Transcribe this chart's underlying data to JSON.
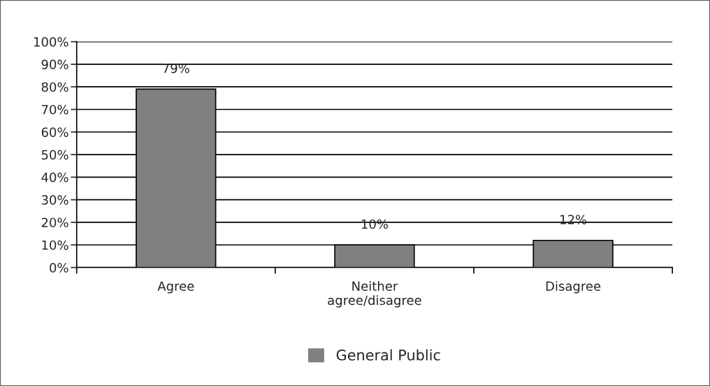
{
  "chart_data": {
    "type": "bar",
    "categories": [
      "Agree",
      "Neither\nagree/disagree",
      "Disagree"
    ],
    "series": [
      {
        "name": "General Public",
        "color": "#808080",
        "values": [
          79,
          10,
          12
        ],
        "value_labels": [
          "79%",
          "10%",
          "12%"
        ]
      }
    ],
    "ylim": [
      0,
      100
    ],
    "yticks": [
      {
        "value": 0,
        "label": "0%"
      },
      {
        "value": 10,
        "label": "10%"
      },
      {
        "value": 20,
        "label": "20%"
      },
      {
        "value": 30,
        "label": "30%"
      },
      {
        "value": 40,
        "label": "40%"
      },
      {
        "value": 50,
        "label": "50%"
      },
      {
        "value": 60,
        "label": "60%"
      },
      {
        "value": 70,
        "label": "70%"
      },
      {
        "value": 80,
        "label": "80%"
      },
      {
        "value": 90,
        "label": "90%"
      },
      {
        "value": 100,
        "label": "100%"
      }
    ],
    "grid": "y",
    "legend": "bottom"
  }
}
